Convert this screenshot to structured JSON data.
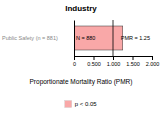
{
  "chart_data": {
    "type": "bar",
    "orientation": "horizontal",
    "title": "Industry",
    "x_label": "Proportionate Mortality Ratio (PMR)",
    "y_label": "Public Safety (n = 881)",
    "categories": [
      null
    ],
    "series": [
      {
        "name": "p < 0.05",
        "color": "#f9a8a8",
        "values": [
          1.25
        ],
        "value_labels": [
          "PMR = 1.25"
        ]
      }
    ],
    "data_labels": true,
    "annotations": [
      "N = 880"
    ],
    "reference_line": 1.0,
    "xlim": [
      0,
      2.0
    ],
    "xticks": [
      0,
      {
        "value": 0.5,
        "label": "0.500"
      },
      {
        "value": 1.0,
        "label": "1.000"
      },
      {
        "value": 1.5,
        "label": "1.500"
      },
      {
        "value": 2.0,
        "label": "2.000"
      }
    ],
    "grid": false,
    "legend": "bottom"
  }
}
